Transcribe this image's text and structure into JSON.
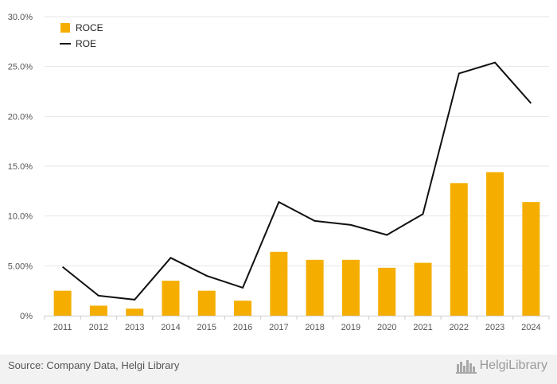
{
  "chart_data": {
    "type": "bar",
    "categories": [
      "2011",
      "2012",
      "2013",
      "2014",
      "2015",
      "2016",
      "2017",
      "2018",
      "2019",
      "2020",
      "2021",
      "2022",
      "2023",
      "2024"
    ],
    "series": [
      {
        "name": "ROCE",
        "type": "bar",
        "color": "#f5ae00",
        "values": [
          2.5,
          1.0,
          0.7,
          3.5,
          2.5,
          1.5,
          6.4,
          5.6,
          5.6,
          4.8,
          5.3,
          13.3,
          14.4,
          11.4
        ]
      },
      {
        "name": "ROE",
        "type": "line",
        "color": "#111111",
        "values": [
          4.9,
          2.0,
          1.6,
          5.8,
          4.0,
          2.8,
          11.4,
          9.5,
          9.1,
          8.1,
          10.2,
          24.3,
          25.4,
          21.3
        ]
      }
    ],
    "ylim": [
      0,
      30
    ],
    "yticks": [
      "0%",
      "5.00%",
      "10.0%",
      "15.0%",
      "20.0%",
      "25.0%",
      "30.0%"
    ],
    "title": "",
    "xlabel": "",
    "ylabel": "",
    "grid": true,
    "legend": "top-left"
  },
  "footer": {
    "source": "Source: Company Data, Helgi Library",
    "brand": "HelgiLibrary"
  }
}
